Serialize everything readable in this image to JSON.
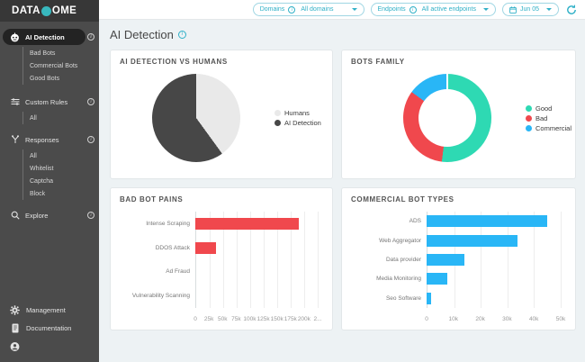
{
  "theme": {
    "accent": "#2fb0c7",
    "brand_teal": "#38b8be",
    "good_teal": "#2ed9b3",
    "bad_red": "#f0484d",
    "commercial_blue": "#29b6f6",
    "pie_dark": "#474747",
    "pie_light": "#e9e9e9"
  },
  "brand": {
    "logo_prefix": "DATA",
    "logo_suffix": "OME",
    "logo_icon": "dome-circle-icon"
  },
  "header": {
    "domains_label": "Domains",
    "domains_value": "All domains",
    "endpoints_label": "Endpoints",
    "endpoints_value": "All active endpoints",
    "date_value": "Jun 05",
    "icons": [
      "info-icon",
      "calendar-icon",
      "chevron-down-icon",
      "refresh-icon"
    ]
  },
  "page": {
    "title": "AI Detection"
  },
  "sidebar": {
    "items": [
      {
        "label": "AI Detection",
        "icon": "robot-icon",
        "active": true,
        "info": true
      },
      {
        "label": "Bad Bots",
        "info": true
      },
      {
        "label": "Commercial Bots",
        "info": true
      },
      {
        "label": "Good Bots",
        "info": true
      },
      {
        "label": "Custom Rules",
        "icon": "sliders-icon",
        "info": true
      },
      {
        "label": "All"
      },
      {
        "label": "Responses",
        "icon": "branch-icon",
        "info": true
      },
      {
        "label": "All"
      },
      {
        "label": "Whitelist"
      },
      {
        "label": "Captcha"
      },
      {
        "label": "Block"
      },
      {
        "label": "Explore",
        "icon": "search-icon",
        "info": true
      }
    ],
    "footer": [
      {
        "label": "Management",
        "icon": "gear-icon"
      },
      {
        "label": "Documentation",
        "icon": "document-icon"
      },
      {
        "label": "",
        "icon": "user-icon"
      }
    ]
  },
  "chart_data": [
    {
      "type": "pie",
      "title": "AI DETECTION VS HUMANS",
      "series": [
        {
          "name": "Humans",
          "value": 40,
          "color": "#e9e9e9"
        },
        {
          "name": "AI Detection",
          "value": 60,
          "color": "#474747"
        }
      ],
      "unit": "percent",
      "legend_position": "right"
    },
    {
      "type": "pie",
      "subtype": "donut",
      "title": "BOTS FAMILY",
      "series": [
        {
          "name": "Good",
          "value": 52,
          "color": "#2ed9b3"
        },
        {
          "name": "Bad",
          "value": 33,
          "color": "#f0484d"
        },
        {
          "name": "Commercial",
          "value": 15,
          "color": "#29b6f6"
        }
      ],
      "unit": "percent",
      "legend_position": "right"
    },
    {
      "type": "bar",
      "orientation": "horizontal",
      "title": "BAD BOT PAINS",
      "categories": [
        "Intense Scraping",
        "DDOS Attack",
        "Ad Fraud",
        "Vulnerability Scanning"
      ],
      "values": [
        190000,
        38000,
        0,
        0
      ],
      "color": "#f0484d",
      "xlim": [
        0,
        225000
      ],
      "ticks": [
        "0",
        "25k",
        "50k",
        "75k",
        "100k",
        "125k",
        "150k",
        "175k",
        "200k",
        "2..."
      ],
      "grid": true
    },
    {
      "type": "bar",
      "orientation": "horizontal",
      "title": "COMMERCIAL BOT TYPES",
      "categories": [
        "ADS",
        "Web Aggregator",
        "Data provider",
        "Media Monitoring",
        "Seo Software"
      ],
      "values": [
        45000,
        34000,
        14000,
        7700,
        1800
      ],
      "color": "#29b6f6",
      "xlim": [
        0,
        50000
      ],
      "ticks": [
        "0",
        "10k",
        "20k",
        "30k",
        "40k",
        "50k"
      ],
      "grid": true
    }
  ]
}
